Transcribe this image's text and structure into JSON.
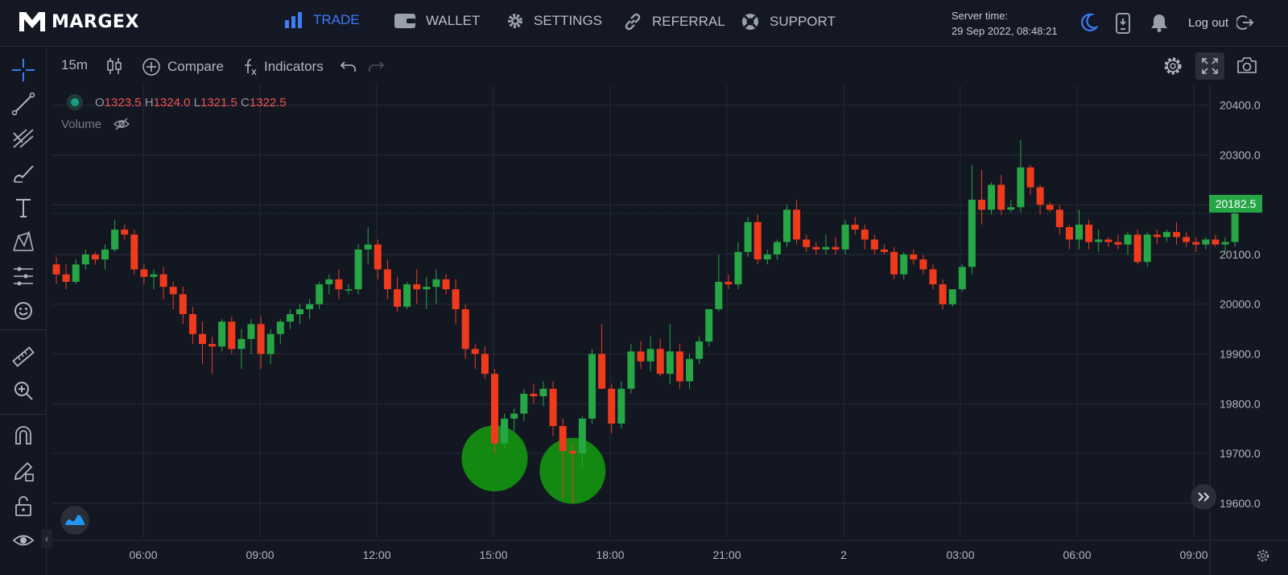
{
  "brand": {
    "name": "MARGEX"
  },
  "nav": {
    "items": [
      {
        "label": "TRADE",
        "icon": "bar-chart-icon",
        "active": true
      },
      {
        "label": "WALLET",
        "icon": "wallet-icon"
      },
      {
        "label": "SETTINGS",
        "icon": "gear-icon"
      },
      {
        "label": "REFERRAL",
        "icon": "link-icon"
      },
      {
        "label": "SUPPORT",
        "icon": "lifebuoy-icon"
      }
    ]
  },
  "server": {
    "label": "Server time:",
    "value": "29 Sep 2022, 08:48:21"
  },
  "header": {
    "logout_label": "Log out"
  },
  "toolbar": {
    "interval": "15m",
    "compare_label": "Compare",
    "indicators_label": "Indicators"
  },
  "legend": {
    "o_label": "O",
    "o_value": "1323.5",
    "h_label": "H",
    "h_value": "1324.0",
    "l_label": "L",
    "l_value": "1321.5",
    "c_label": "C",
    "c_value": "1322.5",
    "volume_label": "Volume"
  },
  "last_price": "20182.5",
  "colors": {
    "up": "#26a645",
    "down": "#ef3b1c",
    "accent": "#3d7bf7",
    "highlight": "#149e0e"
  },
  "chart_data": {
    "type": "candlestick",
    "x_ticks": [
      "06:00",
      "09:00",
      "12:00",
      "15:00",
      "18:00",
      "21:00",
      "2",
      "03:00",
      "06:00",
      "09:00"
    ],
    "y_ticks": [
      19600,
      19700,
      19800,
      19900,
      20000,
      20100,
      20200,
      20300,
      20400
    ],
    "ylim": [
      19530,
      20440
    ],
    "grid": true,
    "candles": [
      [
        20080,
        20095,
        20040,
        20060
      ],
      [
        20060,
        20080,
        20030,
        20045
      ],
      [
        20045,
        20090,
        20040,
        20080
      ],
      [
        20080,
        20110,
        20070,
        20100
      ],
      [
        20100,
        20105,
        20080,
        20090
      ],
      [
        20090,
        20120,
        20070,
        20110
      ],
      [
        20110,
        20170,
        20105,
        20150
      ],
      [
        20150,
        20160,
        20130,
        20140
      ],
      [
        20140,
        20150,
        20060,
        20070
      ],
      [
        20070,
        20080,
        20040,
        20055
      ],
      [
        20055,
        20070,
        20030,
        20060
      ],
      [
        20060,
        20075,
        20010,
        20035
      ],
      [
        20035,
        20045,
        19990,
        20020
      ],
      [
        20020,
        20035,
        19960,
        19980
      ],
      [
        19980,
        19995,
        19920,
        19940
      ],
      [
        19940,
        19965,
        19880,
        19920
      ],
      [
        19920,
        19935,
        19860,
        19915
      ],
      [
        19915,
        19970,
        19905,
        19965
      ],
      [
        19965,
        19975,
        19900,
        19910
      ],
      [
        19910,
        19950,
        19870,
        19930
      ],
      [
        19930,
        19970,
        19900,
        19960
      ],
      [
        19960,
        19975,
        19870,
        19900
      ],
      [
        19900,
        19950,
        19880,
        19940
      ],
      [
        19940,
        19970,
        19920,
        19965
      ],
      [
        19965,
        19990,
        19950,
        19980
      ],
      [
        19980,
        20000,
        19960,
        19990
      ],
      [
        19990,
        20010,
        19970,
        20000
      ],
      [
        20000,
        20045,
        19990,
        20040
      ],
      [
        20040,
        20060,
        20020,
        20050
      ],
      [
        20050,
        20070,
        20010,
        20030
      ],
      [
        20030,
        20040,
        20020,
        20030
      ],
      [
        20030,
        20120,
        20020,
        20110
      ],
      [
        20110,
        20155,
        20080,
        20120
      ],
      [
        20120,
        20130,
        20050,
        20070
      ],
      [
        20070,
        20090,
        20010,
        20030
      ],
      [
        20030,
        20055,
        19985,
        19995
      ],
      [
        19995,
        20045,
        19990,
        20040
      ],
      [
        20040,
        20070,
        20000,
        20030
      ],
      [
        20030,
        20055,
        19990,
        20035
      ],
      [
        20035,
        20070,
        20000,
        20050
      ],
      [
        20050,
        20060,
        20020,
        20030
      ],
      [
        20030,
        20050,
        19960,
        19990
      ],
      [
        19990,
        20000,
        19890,
        19910
      ],
      [
        19910,
        19920,
        19870,
        19900
      ],
      [
        19900,
        19915,
        19850,
        19860
      ],
      [
        19860,
        19870,
        19700,
        19720
      ],
      [
        19720,
        19780,
        19710,
        19770
      ],
      [
        19770,
        19790,
        19745,
        19780
      ],
      [
        19780,
        19830,
        19765,
        19820
      ],
      [
        19820,
        19840,
        19800,
        19815
      ],
      [
        19815,
        19845,
        19795,
        19830
      ],
      [
        19830,
        19845,
        19735,
        19755
      ],
      [
        19755,
        19770,
        19610,
        19705
      ],
      [
        19705,
        19720,
        19600,
        19700
      ],
      [
        19700,
        19775,
        19670,
        19770
      ],
      [
        19770,
        19910,
        19760,
        19900
      ],
      [
        19900,
        19960,
        19830,
        19830
      ],
      [
        19830,
        19840,
        19740,
        19760
      ],
      [
        19760,
        19845,
        19750,
        19830
      ],
      [
        19830,
        19920,
        19820,
        19905
      ],
      [
        19905,
        19925,
        19870,
        19885
      ],
      [
        19885,
        19935,
        19865,
        19910
      ],
      [
        19910,
        19930,
        19855,
        19860
      ],
      [
        19860,
        19960,
        19840,
        19905
      ],
      [
        19905,
        19920,
        19830,
        19845
      ],
      [
        19845,
        19900,
        19830,
        19890
      ],
      [
        19890,
        19935,
        19880,
        19925
      ],
      [
        19925,
        19990,
        19915,
        19990
      ],
      [
        19990,
        20100,
        19985,
        20045
      ],
      [
        20045,
        20060,
        20030,
        20040
      ],
      [
        20040,
        20125,
        20030,
        20105
      ],
      [
        20105,
        20175,
        20095,
        20165
      ],
      [
        20165,
        20180,
        20080,
        20090
      ],
      [
        20090,
        20110,
        20080,
        20100
      ],
      [
        20100,
        20130,
        20090,
        20125
      ],
      [
        20125,
        20200,
        20115,
        20190
      ],
      [
        20190,
        20210,
        20120,
        20130
      ],
      [
        20130,
        20140,
        20105,
        20115
      ],
      [
        20115,
        20125,
        20100,
        20110
      ],
      [
        20110,
        20140,
        20100,
        20115
      ],
      [
        20115,
        20135,
        20100,
        20110
      ],
      [
        20110,
        20170,
        20100,
        20160
      ],
      [
        20160,
        20175,
        20140,
        20150
      ],
      [
        20150,
        20160,
        20110,
        20130
      ],
      [
        20130,
        20140,
        20100,
        20110
      ],
      [
        20110,
        20120,
        20100,
        20105
      ],
      [
        20105,
        20115,
        20050,
        20060
      ],
      [
        20060,
        20105,
        20050,
        20100
      ],
      [
        20100,
        20110,
        20080,
        20090
      ],
      [
        20090,
        20100,
        20060,
        20070
      ],
      [
        20070,
        20080,
        20030,
        20040
      ],
      [
        20040,
        20050,
        19990,
        20000
      ],
      [
        20000,
        20030,
        19995,
        20030
      ],
      [
        20030,
        20080,
        20025,
        20075
      ],
      [
        20075,
        20280,
        20060,
        20210
      ],
      [
        20210,
        20270,
        20160,
        20190
      ],
      [
        20190,
        20245,
        20180,
        20240
      ],
      [
        20240,
        20260,
        20180,
        20190
      ],
      [
        20190,
        20210,
        20185,
        20195
      ],
      [
        20195,
        20330,
        20185,
        20275
      ],
      [
        20275,
        20280,
        20220,
        20235
      ],
      [
        20235,
        20240,
        20180,
        20200
      ],
      [
        20200,
        20205,
        20185,
        20190
      ],
      [
        20190,
        20200,
        20140,
        20155
      ],
      [
        20155,
        20160,
        20110,
        20130
      ],
      [
        20130,
        20190,
        20110,
        20160
      ],
      [
        20160,
        20170,
        20110,
        20125
      ],
      [
        20125,
        20150,
        20105,
        20130
      ],
      [
        20130,
        20135,
        20115,
        20125
      ],
      [
        20125,
        20140,
        20110,
        20120
      ],
      [
        20120,
        20145,
        20100,
        20140
      ],
      [
        20140,
        20150,
        20080,
        20085
      ],
      [
        20085,
        20145,
        20075,
        20140
      ],
      [
        20140,
        20150,
        20120,
        20135
      ],
      [
        20135,
        20150,
        20125,
        20145
      ],
      [
        20145,
        20165,
        20120,
        20135
      ],
      [
        20135,
        20145,
        20115,
        20125
      ],
      [
        20125,
        20135,
        20105,
        20120
      ],
      [
        20120,
        20135,
        20110,
        20130
      ],
      [
        20130,
        20140,
        20115,
        20120
      ],
      [
        20120,
        20135,
        20105,
        20125
      ],
      [
        20125,
        20200,
        20115,
        20182.5
      ]
    ],
    "highlights": [
      {
        "candle": 45,
        "price": 19690
      },
      {
        "candle": 53,
        "price": 19665
      }
    ]
  }
}
